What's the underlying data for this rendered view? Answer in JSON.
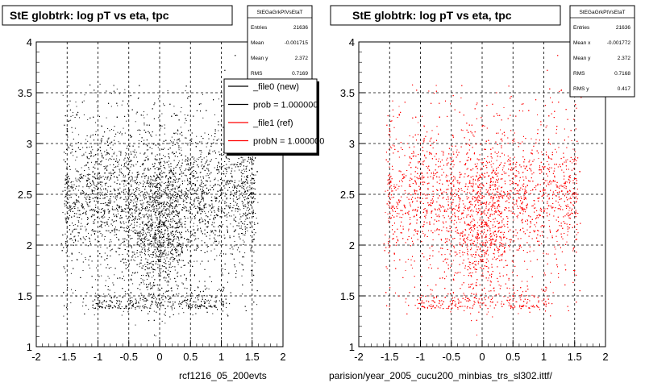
{
  "chart_data": [
    {
      "type": "scatter",
      "title": "StE globtrk: log pT vs eta, tpc",
      "xlabel": "rcf1216_05_200evts",
      "ylabel": "",
      "xlim": [
        -2,
        2
      ],
      "ylim": [
        1,
        4
      ],
      "x_ticks": [
        "-2",
        "-1.5",
        "-1",
        "-0.5",
        "0",
        "0.5",
        "1",
        "1.5",
        "2"
      ],
      "y_ticks": [
        "1",
        "1.5",
        "2",
        "2.5",
        "3",
        "3.5",
        "4"
      ],
      "grid": true,
      "point_color": "#000000",
      "density": {
        "x_range": [
          -1.6,
          1.6
        ],
        "y_range": [
          1.3,
          3.6
        ],
        "core_y": 2.5,
        "peak": [
          0,
          2.1
        ]
      },
      "stats": {
        "name": "StEGaGrkPtVsEtaT",
        "rows": [
          {
            "label": "Entries",
            "value": "21636"
          },
          {
            "label": "Mean",
            "value": "-0.001715"
          },
          {
            "label": "Mean y",
            "value": "2.372"
          },
          {
            "label": "RMS",
            "value": "0.7169"
          }
        ]
      },
      "legend": {
        "placement": "top-right",
        "entries": [
          {
            "label": "_file0 (new)",
            "color": "#000000"
          },
          {
            "label": "prob = 1.000000",
            "color": "#000000"
          },
          {
            "label": "_file1 (ref)",
            "color": "#ff0000"
          },
          {
            "label": "probN = 1.000000",
            "color": "#ff0000"
          }
        ]
      }
    },
    {
      "type": "scatter",
      "title": "StE globtrk: log pT vs eta, tpc",
      "xlabel": "parision/year_2005_cucu200_minbias_trs_sl302.ittf/",
      "ylabel": "",
      "xlim": [
        -2,
        2
      ],
      "ylim": [
        1,
        4
      ],
      "x_ticks": [
        "-2",
        "-1.5",
        "-1",
        "-0.5",
        "0",
        "0.5",
        "1",
        "1.5",
        "2"
      ],
      "y_ticks": [
        "1",
        "1.5",
        "2",
        "2.5",
        "3",
        "3.5",
        "4"
      ],
      "grid": true,
      "point_color": "#ff0000",
      "density": {
        "x_range": [
          -1.6,
          1.6
        ],
        "y_range": [
          1.3,
          3.6
        ],
        "core_y": 2.5,
        "peak": [
          0,
          2.1
        ]
      },
      "stats": {
        "name": "StEGaGrkPtVsEtaT",
        "rows": [
          {
            "label": "Entries",
            "value": "21636"
          },
          {
            "label": "Mean x",
            "value": "-0.001772"
          },
          {
            "label": "Mean y",
            "value": "2.372"
          },
          {
            "label": "RMS",
            "value": "0.7168"
          },
          {
            "label": "RMS y",
            "value": "0.417"
          }
        ]
      }
    }
  ]
}
